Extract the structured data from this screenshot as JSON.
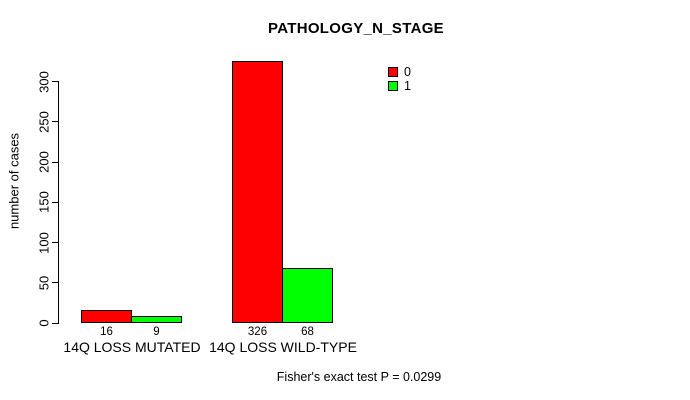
{
  "chart_data": {
    "type": "bar",
    "title": "PATHOLOGY_N_STAGE",
    "categories": [
      "14Q LOSS MUTATED",
      "14Q LOSS WILD-TYPE"
    ],
    "series": [
      {
        "name": "0",
        "color": "#FF0000",
        "values": [
          16,
          326
        ]
      },
      {
        "name": "1",
        "color": "#00FF00",
        "values": [
          9,
          68
        ]
      }
    ],
    "xlabel": "",
    "ylabel": "number of cases",
    "ylim": [
      0,
      300
    ],
    "yticks": [
      0,
      50,
      100,
      150,
      200,
      250,
      300
    ],
    "grid": false,
    "legend_position": "top-right",
    "bar_value_labels_shown": true,
    "annotation": "Fisher's exact test P = 0.0299"
  },
  "colors": {
    "axis": "#000000",
    "background": "#FFFFFF",
    "series_0": "#FF0000",
    "series_1": "#00FF00"
  }
}
